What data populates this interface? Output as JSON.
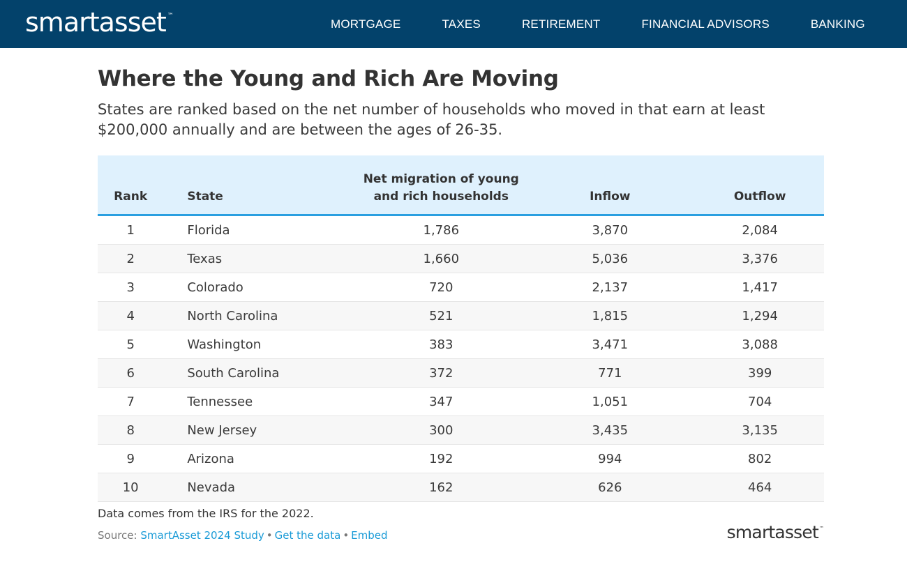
{
  "header": {
    "logo": "smartasset",
    "logo_tm": "™",
    "nav": [
      "MORTGAGE",
      "TAXES",
      "RETIREMENT",
      "FINANCIAL ADVISORS",
      "BANKING"
    ]
  },
  "chart_data": {
    "type": "table",
    "title": "Where the Young and Rich Are Moving",
    "subtitle": "States are ranked based on the net number of households who moved in that earn at least $200,000 annually and are between the ages of 26-35.",
    "columns": [
      "Rank",
      "State",
      "Net migration of young and rich households",
      "Inflow",
      "Outflow"
    ],
    "rows": [
      {
        "rank": "1",
        "state": "Florida",
        "net": "1,786",
        "inflow": "3,870",
        "outflow": "2,084"
      },
      {
        "rank": "2",
        "state": "Texas",
        "net": "1,660",
        "inflow": "5,036",
        "outflow": "3,376"
      },
      {
        "rank": "3",
        "state": "Colorado",
        "net": "720",
        "inflow": "2,137",
        "outflow": "1,417"
      },
      {
        "rank": "4",
        "state": "North Carolina",
        "net": "521",
        "inflow": "1,815",
        "outflow": "1,294"
      },
      {
        "rank": "5",
        "state": "Washington",
        "net": "383",
        "inflow": "3,471",
        "outflow": "3,088"
      },
      {
        "rank": "6",
        "state": "South Carolina",
        "net": "372",
        "inflow": "771",
        "outflow": "399"
      },
      {
        "rank": "7",
        "state": "Tennessee",
        "net": "347",
        "inflow": "1,051",
        "outflow": "704"
      },
      {
        "rank": "8",
        "state": "New Jersey",
        "net": "300",
        "inflow": "3,435",
        "outflow": "3,135"
      },
      {
        "rank": "9",
        "state": "Arizona",
        "net": "192",
        "inflow": "994",
        "outflow": "802"
      },
      {
        "rank": "10",
        "state": "Nevada",
        "net": "162",
        "inflow": "626",
        "outflow": "464"
      }
    ]
  },
  "footer": {
    "note": "Data comes from the IRS for the 2022.",
    "source_label": "Source:",
    "links": [
      "SmartAsset 2024 Study",
      "Get the data",
      "Embed"
    ],
    "separator": "•",
    "logo": "smartasset",
    "logo_tm": "™"
  },
  "colors": {
    "header_bg": "#03426b",
    "table_header_bg": "#dff1fd",
    "table_header_border": "#2a9fe0",
    "link": "#1a9bd7"
  }
}
